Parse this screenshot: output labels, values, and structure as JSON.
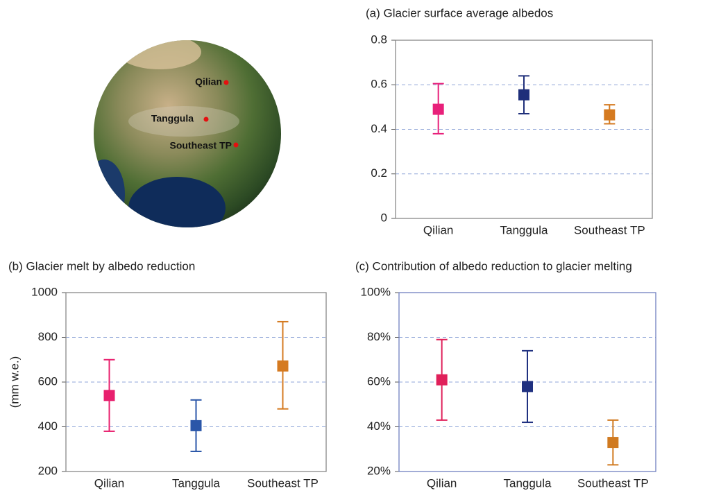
{
  "map": {
    "labels": [
      "Qilian",
      "Tanggula",
      "Southeast TP"
    ]
  },
  "chart_data": [
    {
      "type": "errorbar",
      "title": "(a) Glacier surface average albedos",
      "categories": [
        "Qilian",
        "Tanggula",
        "Southeast TP"
      ],
      "values": [
        0.49,
        0.555,
        0.465
      ],
      "lower": [
        0.38,
        0.47,
        0.425
      ],
      "upper": [
        0.605,
        0.64,
        0.51
      ],
      "colors": [
        "#e8207a",
        "#1f2f7a",
        "#d57a20"
      ],
      "ylim": [
        0,
        0.8
      ],
      "yticks": [
        0,
        0.2,
        0.4,
        0.6,
        0.8
      ],
      "grid": true,
      "frame": "#888888"
    },
    {
      "type": "errorbar",
      "title": "(b) Glacier melt by albedo reduction",
      "ylabel": "(mm w.e.)",
      "categories": [
        "Qilian",
        "Tanggula",
        "Southeast TP"
      ],
      "values": [
        540,
        405,
        672
      ],
      "lower": [
        380,
        290,
        480
      ],
      "upper": [
        700,
        520,
        870
      ],
      "colors": [
        "#e8206e",
        "#2a56a8",
        "#d57a20"
      ],
      "ylim": [
        200,
        1000
      ],
      "yticks": [
        200,
        400,
        600,
        800,
        1000
      ],
      "grid": true,
      "frame": "#888888"
    },
    {
      "type": "errorbar",
      "title": "(c) Contribution of albedo reduction to glacier melting",
      "categories": [
        "Qilian",
        "Tanggula",
        "Southeast TP"
      ],
      "values": [
        61,
        58,
        33
      ],
      "lower": [
        43,
        42,
        23
      ],
      "upper": [
        79,
        74,
        43
      ],
      "colors": [
        "#e0205a",
        "#1f3080",
        "#d07a20"
      ],
      "ylim": [
        20,
        100
      ],
      "yticks": [
        {
          "value": 20,
          "label": "20%"
        },
        {
          "value": 40,
          "label": "40%"
        },
        {
          "value": 60,
          "label": "60%"
        },
        {
          "value": 80,
          "label": "80%"
        },
        {
          "value": 100,
          "label": "100%"
        }
      ],
      "grid": true,
      "frame": "#7080c0"
    }
  ]
}
